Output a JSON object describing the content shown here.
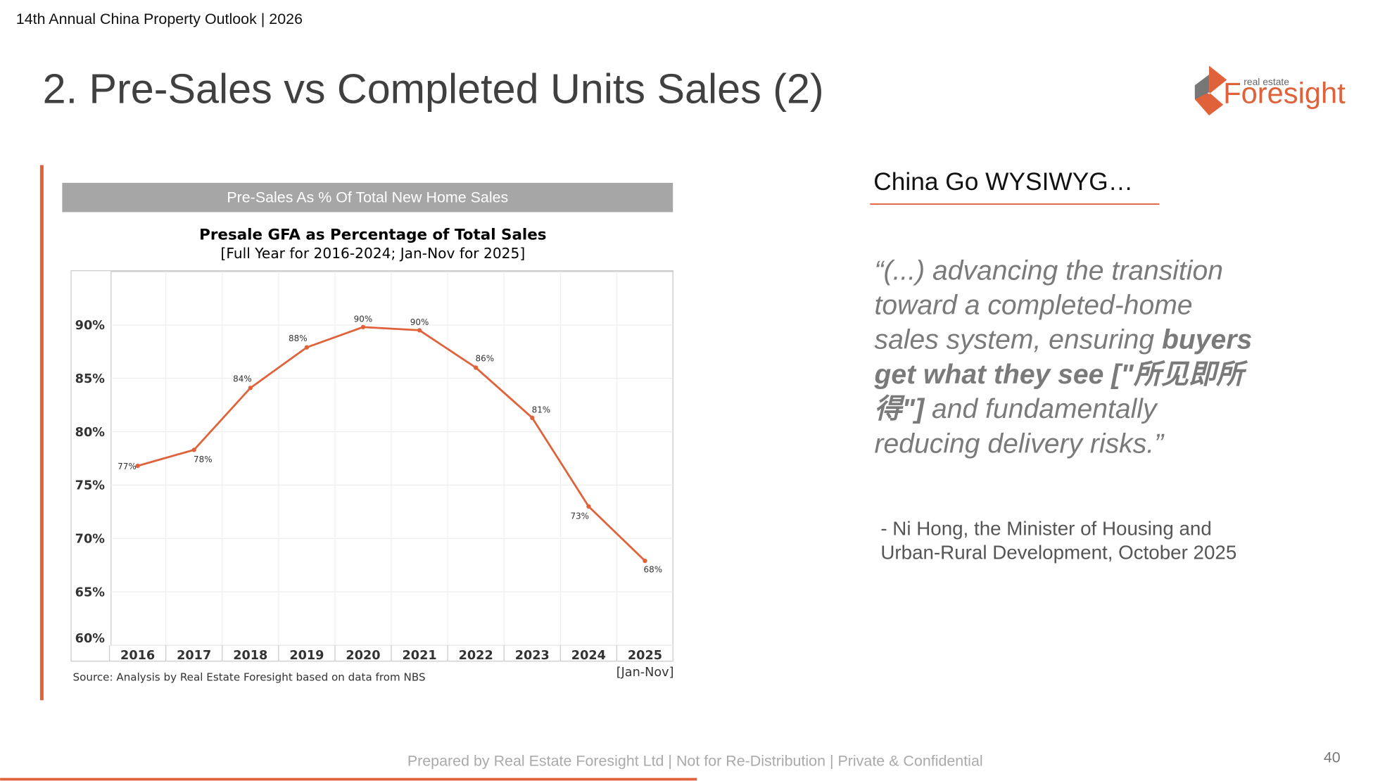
{
  "header": {
    "event": "14th Annual China Property Outlook | 2026",
    "title": "2. Pre-Sales vs Completed Units Sales (2)",
    "logo_small": "real estate",
    "logo_big": "Foresight"
  },
  "panel_title": "Pre-Sales As % Of Total New Home Sales",
  "chart_data": {
    "type": "line",
    "title": "Presale GFA as Percentage of Total Sales",
    "subtitle": "[Full Year for 2016-2024; Jan-Nov for 2025]",
    "categories": [
      "2016",
      "2017",
      "2018",
      "2019",
      "2020",
      "2021",
      "2022",
      "2023",
      "2024",
      "2025"
    ],
    "x_note": "[Jan-Nov]",
    "series": [
      {
        "name": "Presale GFA %",
        "color": "#e0623a",
        "values": [
          76.8,
          78.3,
          84.1,
          87.9,
          89.8,
          89.5,
          86.0,
          81.3,
          73.0,
          67.9
        ],
        "value_labels": [
          "77%",
          "78%",
          "84%",
          "88%",
          "90%",
          "90%",
          "86%",
          "81%",
          "73%",
          "68%"
        ]
      }
    ],
    "ylim": [
      60,
      95
    ],
    "yticks": [
      {
        "value": 60,
        "label": "60%"
      },
      {
        "value": 65,
        "label": "65%"
      },
      {
        "value": 70,
        "label": "70%"
      },
      {
        "value": 75,
        "label": "75%"
      },
      {
        "value": 80,
        "label": "80%"
      },
      {
        "value": 85,
        "label": "85%"
      },
      {
        "value": 90,
        "label": "90%"
      }
    ],
    "grid": true,
    "source": "Source: Analysis by Real Estate Foresight based on data from NBS"
  },
  "side": {
    "heading": "China Go WYSIWYG…",
    "quote_lines": [
      [
        {
          "text": "“(...) advancing the transition",
          "bold": false
        }
      ],
      [
        {
          "text": "toward a completed-home",
          "bold": false
        }
      ],
      [
        {
          "text": "sales system, ensuring ",
          "bold": false
        },
        {
          "text": "buyers",
          "bold": true
        }
      ],
      [
        {
          "text": "get what they see [\"所见即所",
          "bold": true
        }
      ],
      [
        {
          "text": "得\"]",
          "bold": true
        },
        {
          "text": " and fundamentally",
          "bold": false
        }
      ],
      [
        {
          "text": "reducing delivery risks.”",
          "bold": false
        }
      ]
    ],
    "attribution": [
      "- Ni Hong, the Minister of Housing and",
      "Urban-Rural Development, October 2025"
    ]
  },
  "footer": {
    "note": "Prepared by Real Estate Foresight Ltd | Not for Re-Distribution | Private & Confidential",
    "page": "40"
  }
}
